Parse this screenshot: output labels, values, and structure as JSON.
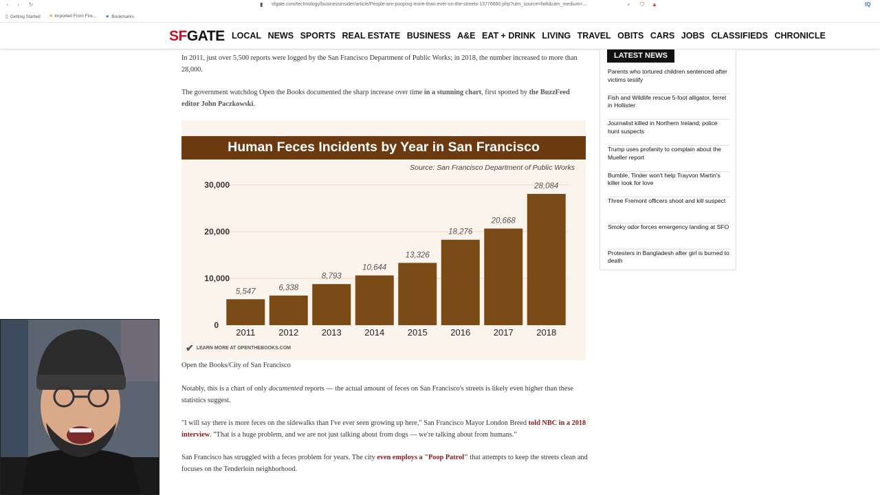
{
  "browser": {
    "url": "sfgate.com/technology/businessinsider/article/People-are-pooping-more-than-ever-on-the-streets-13778680.php?utm_source=fark&utm_medium=...",
    "bookmarks": [
      "Getting Started",
      "Imported From Fire...",
      "Bookmarks"
    ]
  },
  "site": {
    "logo_sf": "SF",
    "logo_gate": "GATE",
    "nav": [
      "LOCAL",
      "NEWS",
      "SPORTS",
      "REAL ESTATE",
      "BUSINESS",
      "A&E",
      "EAT + DRINK",
      "LIVING",
      "TRAVEL",
      "OBITS",
      "CARS",
      "JOBS",
      "CLASSIFIEDS",
      "CHRONICLE"
    ]
  },
  "article": {
    "p1": "In 2011, just over 5,500 reports were logged by the San Francisco Department of Public Works; in 2018, the number increased to more than 28,000.",
    "p2_a": "The government watchdog Open the Books documented the sharp increase over time ",
    "p2_link1": "in a stunning chart",
    "p2_b": ", first spotted by ",
    "p2_link2": "the BuzzFeed editor John Paczkowski",
    "p2_c": ".",
    "caption": "Open the Books/City of San Francisco",
    "p3_a": "Notably, this is a chart of only ",
    "p3_em": "documented",
    "p3_b": " reports — the actual amount of feces on San Francisco's streets is likely even higher than these statistics suggest.",
    "p4_a": "\"I will say there is more feces on the sidewalks than I've ever seen growing up here,\" San Francisco Mayor London Breed ",
    "p4_link": "told NBC in a 2018 interview",
    "p4_b": ". \"That is a huge problem, and we are not just talking about from dogs — we're talking about from humans.\"",
    "p5_a": "San Francisco has struggled with a feces problem for years. The city ",
    "p5_link": "even employs a \"Poop Patrol\"",
    "p5_b": " that attempts to keep the streets clean and focuses on the Tenderloin neighborhood."
  },
  "chart_data": {
    "type": "bar",
    "title": "Human Feces Incidents by Year in San Francisco",
    "subtitle": "Source: San Francisco Department of Public Works",
    "categories": [
      "2011",
      "2012",
      "2013",
      "2014",
      "2015",
      "2016",
      "2017",
      "2018"
    ],
    "values": [
      5547,
      6338,
      8793,
      10644,
      13326,
      18276,
      20668,
      28084
    ],
    "value_labels": [
      "5,547",
      "6,338",
      "8,793",
      "10,644",
      "13,326",
      "18,276",
      "20,668",
      "28,084"
    ],
    "yticks": [
      0,
      10000,
      20000,
      30000
    ],
    "ytick_labels": [
      "0",
      "10,000",
      "20,000",
      "30,000"
    ],
    "ylim": [
      0,
      30000
    ],
    "footer": "LEARN MORE AT OPENTHEBOOKS.COM",
    "grid": true,
    "colors": {
      "bar": "#7a4a17",
      "title_bg": "#6b3a10",
      "background": "#fbf4ec"
    }
  },
  "sidebar": {
    "heading": "LATEST NEWS",
    "items": [
      "Parents who tortured children sentenced after victims testify",
      "Fish and Wildlife rescue 5-foot alligator, ferret in Hollister",
      "Journalist killed in Northern Ireland; police hunt suspects",
      "Trump uses profanity to complain about the Mueller report",
      "Bumble, Tinder won't help Trayvon Martin's killer look for love",
      "Three Fremont officers shoot and kill suspect",
      "Smoky odor forces emergency landing at SFO",
      "Protesters in Bangladesh after girl is burned to death"
    ]
  }
}
